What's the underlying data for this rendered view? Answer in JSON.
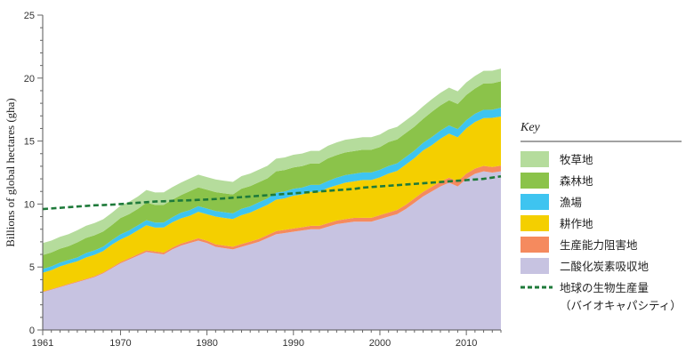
{
  "chart_data": {
    "type": "area",
    "stacked": true,
    "ylabel": "Billions of global hectares (gha)",
    "ylim": [
      0,
      25
    ],
    "xlim": [
      1961,
      2014
    ],
    "x_ticks": [
      1961,
      1970,
      1980,
      1990,
      2000,
      2010
    ],
    "y_ticks": [
      0,
      5,
      10,
      15,
      20,
      25
    ],
    "grid": false,
    "legend": {
      "title": "Key",
      "position": "right"
    },
    "x": [
      1961,
      1962,
      1963,
      1964,
      1965,
      1966,
      1967,
      1968,
      1969,
      1970,
      1971,
      1972,
      1973,
      1974,
      1975,
      1976,
      1977,
      1978,
      1979,
      1980,
      1981,
      1982,
      1983,
      1984,
      1985,
      1986,
      1987,
      1988,
      1989,
      1990,
      1991,
      1992,
      1993,
      1994,
      1995,
      1996,
      1997,
      1998,
      1999,
      2000,
      2001,
      2002,
      2003,
      2004,
      2005,
      2006,
      2007,
      2008,
      2009,
      2010,
      2011,
      2012,
      2013,
      2014
    ],
    "series": [
      {
        "name": "二酸化炭素吸収地",
        "color": "#c7c3e1",
        "values": [
          3.0,
          3.2,
          3.4,
          3.6,
          3.8,
          4.0,
          4.2,
          4.5,
          4.9,
          5.3,
          5.6,
          5.9,
          6.2,
          6.1,
          6.0,
          6.4,
          6.7,
          6.9,
          7.1,
          6.9,
          6.6,
          6.5,
          6.4,
          6.6,
          6.8,
          7.0,
          7.3,
          7.6,
          7.7,
          7.8,
          7.9,
          8.0,
          8.0,
          8.2,
          8.4,
          8.5,
          8.6,
          8.6,
          8.6,
          8.8,
          9.0,
          9.2,
          9.6,
          10.1,
          10.6,
          11.0,
          11.4,
          11.7,
          11.4,
          12.0,
          12.4,
          12.6,
          12.5,
          12.6
        ]
      },
      {
        "name": "生産能力阻害地",
        "color": "#f58a5e",
        "values": [
          0.05,
          0.05,
          0.05,
          0.06,
          0.06,
          0.06,
          0.07,
          0.07,
          0.08,
          0.09,
          0.1,
          0.11,
          0.12,
          0.13,
          0.14,
          0.15,
          0.16,
          0.17,
          0.18,
          0.19,
          0.2,
          0.2,
          0.21,
          0.22,
          0.22,
          0.23,
          0.24,
          0.25,
          0.25,
          0.26,
          0.26,
          0.27,
          0.27,
          0.28,
          0.29,
          0.3,
          0.3,
          0.31,
          0.31,
          0.32,
          0.32,
          0.33,
          0.34,
          0.35,
          0.36,
          0.37,
          0.38,
          0.39,
          0.4,
          0.41,
          0.42,
          0.43,
          0.44,
          0.45
        ]
      },
      {
        "name": "耕作地",
        "color": "#f4cf00",
        "values": [
          1.5,
          1.5,
          1.6,
          1.6,
          1.6,
          1.7,
          1.7,
          1.7,
          1.8,
          1.8,
          1.8,
          1.9,
          2.0,
          1.9,
          2.0,
          2.0,
          2.0,
          2.0,
          2.1,
          2.1,
          2.2,
          2.2,
          2.2,
          2.3,
          2.3,
          2.4,
          2.4,
          2.5,
          2.5,
          2.6,
          2.6,
          2.7,
          2.7,
          2.8,
          2.8,
          2.9,
          2.9,
          3.0,
          3.0,
          3.0,
          3.1,
          3.1,
          3.2,
          3.2,
          3.3,
          3.3,
          3.4,
          3.5,
          3.5,
          3.6,
          3.7,
          3.8,
          3.9,
          3.9
        ]
      },
      {
        "name": "漁場",
        "color": "#3ec4f0",
        "values": [
          0.3,
          0.3,
          0.3,
          0.3,
          0.3,
          0.35,
          0.35,
          0.35,
          0.35,
          0.4,
          0.4,
          0.4,
          0.4,
          0.4,
          0.4,
          0.4,
          0.45,
          0.45,
          0.45,
          0.45,
          0.45,
          0.45,
          0.45,
          0.5,
          0.5,
          0.5,
          0.5,
          0.55,
          0.55,
          0.55,
          0.55,
          0.55,
          0.55,
          0.55,
          0.6,
          0.6,
          0.6,
          0.6,
          0.6,
          0.6,
          0.6,
          0.6,
          0.6,
          0.6,
          0.6,
          0.65,
          0.65,
          0.65,
          0.65,
          0.65,
          0.65,
          0.65,
          0.65,
          0.7
        ]
      },
      {
        "name": "森林地",
        "color": "#8bc34a",
        "values": [
          1.1,
          1.1,
          1.1,
          1.1,
          1.2,
          1.2,
          1.2,
          1.2,
          1.2,
          1.3,
          1.3,
          1.3,
          1.4,
          1.4,
          1.4,
          1.4,
          1.4,
          1.5,
          1.5,
          1.5,
          1.5,
          1.5,
          1.5,
          1.6,
          1.6,
          1.6,
          1.6,
          1.7,
          1.7,
          1.7,
          1.7,
          1.7,
          1.7,
          1.8,
          1.8,
          1.8,
          1.8,
          1.8,
          1.8,
          1.8,
          1.9,
          1.9,
          1.9,
          1.9,
          1.9,
          2.0,
          2.0,
          2.0,
          2.0,
          2.0,
          2.0,
          2.1,
          2.1,
          2.1
        ]
      },
      {
        "name": "牧草地",
        "color": "#b5dc9c",
        "values": [
          0.95,
          0.95,
          0.95,
          0.95,
          0.96,
          0.96,
          0.97,
          0.97,
          0.97,
          0.98,
          0.98,
          0.98,
          0.99,
          0.99,
          0.99,
          0.99,
          1.0,
          1.0,
          1.0,
          1.0,
          1.0,
          1.0,
          1.0,
          1.0,
          1.0,
          1.0,
          1.0,
          1.0,
          1.0,
          1.0,
          1.0,
          1.0,
          1.0,
          1.0,
          1.0,
          1.0,
          1.0,
          1.0,
          1.0,
          1.0,
          1.0,
          1.0,
          1.0,
          1.0,
          1.0,
          1.0,
          1.0,
          1.0,
          1.0,
          1.0,
          1.0,
          1.0,
          1.0,
          1.0
        ]
      }
    ],
    "line_series": {
      "name": "地球の生物生産量",
      "name_line2": "（バイオキャパシティ）",
      "color": "#1e7a3a",
      "style": "dashed",
      "values": [
        9.6,
        9.65,
        9.7,
        9.75,
        9.8,
        9.85,
        9.9,
        9.92,
        9.95,
        10.0,
        10.05,
        10.1,
        10.15,
        10.2,
        10.22,
        10.25,
        10.28,
        10.3,
        10.33,
        10.36,
        10.4,
        10.45,
        10.5,
        10.55,
        10.6,
        10.65,
        10.7,
        10.75,
        10.8,
        10.85,
        10.9,
        10.95,
        11.0,
        11.05,
        11.1,
        11.15,
        11.2,
        11.3,
        11.35,
        11.4,
        11.45,
        11.5,
        11.55,
        11.6,
        11.65,
        11.7,
        11.75,
        11.8,
        11.85,
        11.9,
        11.95,
        12.0,
        12.1,
        12.2
      ]
    }
  }
}
